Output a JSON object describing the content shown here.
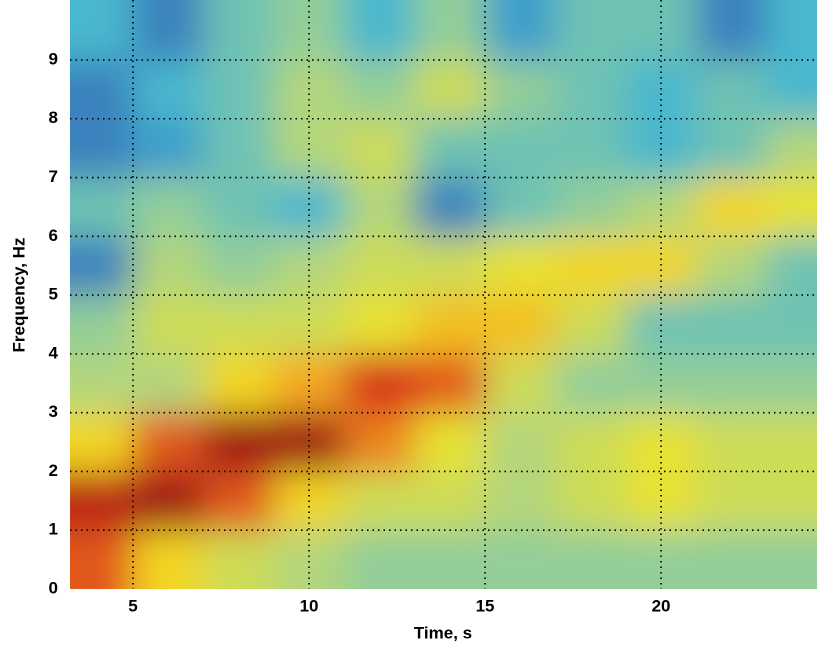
{
  "chart_data": {
    "type": "heatmap",
    "xlabel": "Time, s",
    "ylabel": "Frequency, Hz",
    "x": [
      4,
      6,
      8,
      10,
      12,
      14,
      16,
      18,
      20,
      22,
      24
    ],
    "y": [
      0.5,
      1.5,
      2.5,
      3.5,
      4.5,
      5.5,
      6.5,
      7.5,
      8.5,
      9.5
    ],
    "z": [
      [
        0.8,
        0.6,
        0.5,
        0.45,
        0.4,
        0.4,
        0.4,
        0.4,
        0.4,
        0.4,
        0.4
      ],
      [
        0.9,
        0.95,
        0.8,
        0.6,
        0.5,
        0.5,
        0.45,
        0.5,
        0.55,
        0.5,
        0.5
      ],
      [
        0.6,
        0.8,
        0.95,
        0.95,
        0.75,
        0.55,
        0.45,
        0.5,
        0.55,
        0.5,
        0.5
      ],
      [
        0.45,
        0.45,
        0.6,
        0.7,
        0.85,
        0.8,
        0.5,
        0.4,
        0.4,
        0.4,
        0.4
      ],
      [
        0.4,
        0.5,
        0.5,
        0.5,
        0.55,
        0.65,
        0.65,
        0.5,
        0.35,
        0.35,
        0.35
      ],
      [
        0.2,
        0.45,
        0.4,
        0.45,
        0.5,
        0.5,
        0.55,
        0.6,
        0.6,
        0.45,
        0.35
      ],
      [
        0.35,
        0.4,
        0.35,
        0.3,
        0.45,
        0.2,
        0.35,
        0.4,
        0.45,
        0.6,
        0.55
      ],
      [
        0.2,
        0.25,
        0.35,
        0.45,
        0.5,
        0.35,
        0.35,
        0.35,
        0.3,
        0.35,
        0.45
      ],
      [
        0.2,
        0.3,
        0.35,
        0.45,
        0.4,
        0.5,
        0.4,
        0.35,
        0.3,
        0.35,
        0.3
      ],
      [
        0.3,
        0.2,
        0.35,
        0.4,
        0.3,
        0.4,
        0.25,
        0.35,
        0.35,
        0.2,
        0.3
      ]
    ],
    "zlim": [
      0,
      1
    ],
    "colormap": [
      "#262a80",
      "#3960b0",
      "#3fb4d4",
      "#a8d48a",
      "#f2e424",
      "#f4a020",
      "#d42a1c",
      "#800c10"
    ],
    "xlim": [
      3.21,
      24.43
    ],
    "ylim": [
      0,
      10.02
    ],
    "xticks": [
      5,
      10,
      15,
      20
    ],
    "yticks": [
      0,
      1,
      2,
      3,
      4,
      5,
      6,
      7,
      8,
      9
    ],
    "grid": true
  }
}
